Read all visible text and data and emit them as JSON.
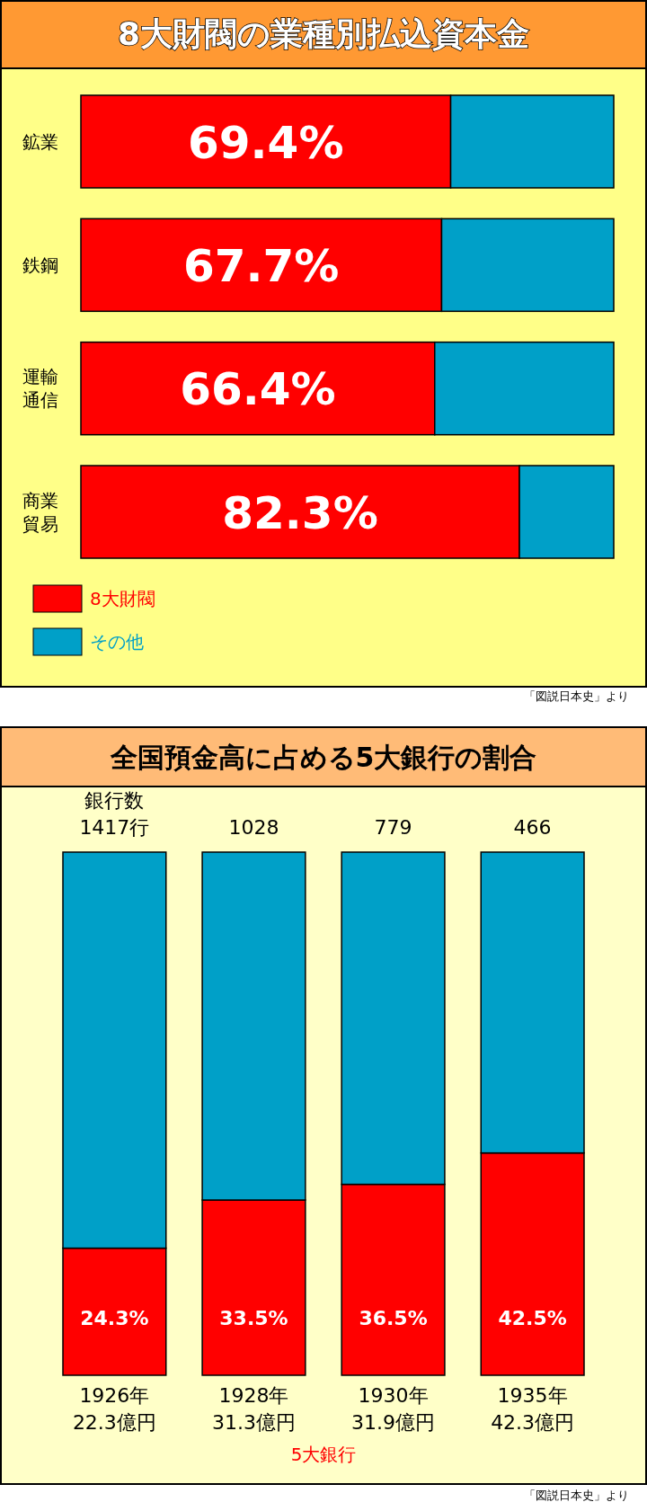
{
  "chart_data": [
    {
      "type": "bar",
      "title": "8大財閥の業種別払込資本金",
      "categories": [
        "鉱業",
        "鉄鋼",
        "運輸通信",
        "商業貿易"
      ],
      "orientation": "horizontal",
      "stacked": true,
      "xlim": [
        0,
        100
      ],
      "tick_labels": "y",
      "legend": "bottom left",
      "series": [
        {
          "name": "8大財閥",
          "color": "#ff0000",
          "values": [
            69.4,
            67.7,
            66.4,
            82.3
          ],
          "value_labels": [
            "69.4%",
            "67.7%",
            "66.4%",
            "82.3%"
          ]
        },
        {
          "name": "その他",
          "color": "#00a0c8",
          "values": [
            30.6,
            32.3,
            33.6,
            17.7
          ]
        }
      ],
      "annotations": [
        "「図説日本史」より"
      ]
    },
    {
      "type": "bar",
      "title": "全国預金高に占める5大銀行の割合",
      "categories": [
        "1926年22.3億円",
        "1928年31.3億円",
        "1930年31.9億円",
        "1935年42.3億円"
      ],
      "stacked": true,
      "ylim": [
        0,
        100
      ],
      "tick_labels": "x",
      "series": [
        {
          "color": "#ff0000",
          "values": [
            24.3,
            33.5,
            36.5,
            42.5
          ],
          "value_labels": [
            "24.3%",
            "33.5%",
            "36.5%",
            "42.5%"
          ]
        },
        {
          "color": "#00a0c8",
          "values": [
            75.7,
            66.5,
            63.5,
            57.5
          ]
        }
      ],
      "annotations": [
        {
          "text": "銀行数\n1417行",
          "x": "1926年22.3億円",
          "y": 100
        },
        {
          "text": "1028",
          "x": "1928年31.3億円",
          "y": 100
        },
        {
          "text": "779",
          "x": "1930年31.9億円",
          "y": 100
        },
        {
          "text": "466",
          "x": "1935年42.3億円",
          "y": 100
        },
        "5大銀行",
        "「図説日本史」より"
      ]
    }
  ]
}
